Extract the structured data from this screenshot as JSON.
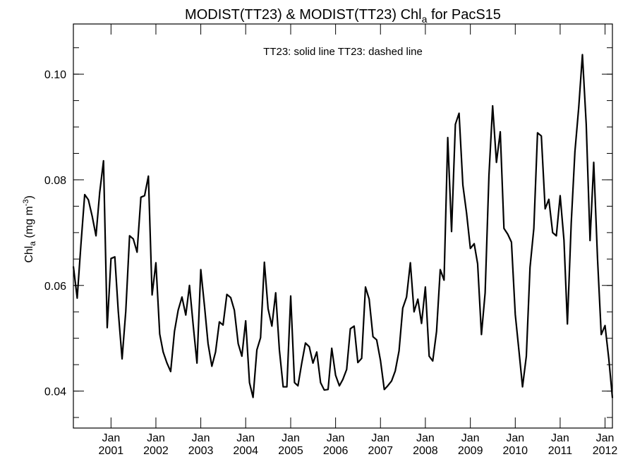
{
  "chart_data": {
    "type": "line",
    "title": {
      "prefix": "MODIST(TT23) & MODIST(TT23)  Chl",
      "subscript": "a",
      "suffix": " for PacS15"
    },
    "annotation": "TT23: solid line   TT23: dashed line",
    "ylabel": {
      "prefix": "Chl",
      "subscript": "a",
      "middle": " (mg m",
      "superscript": "-3",
      "suffix": ")"
    },
    "xlim": [
      "2000-03-01",
      "2012-03-01"
    ],
    "ylim": [
      0.033,
      0.1095
    ],
    "yticks": [
      {
        "value": 0.04,
        "label": "0.04"
      },
      {
        "value": 0.06,
        "label": "0.06"
      },
      {
        "value": 0.08,
        "label": "0.08"
      },
      {
        "value": 0.1,
        "label": "0.10"
      }
    ],
    "yminor_step": 0.005,
    "xticks": [
      {
        "date": "2001-01-01",
        "month": "Jan",
        "year": "2001"
      },
      {
        "date": "2002-01-01",
        "month": "Jan",
        "year": "2002"
      },
      {
        "date": "2003-01-01",
        "month": "Jan",
        "year": "2003"
      },
      {
        "date": "2004-01-01",
        "month": "Jan",
        "year": "2004"
      },
      {
        "date": "2005-01-01",
        "month": "Jan",
        "year": "2005"
      },
      {
        "date": "2006-01-01",
        "month": "Jan",
        "year": "2006"
      },
      {
        "date": "2007-01-01",
        "month": "Jan",
        "year": "2007"
      },
      {
        "date": "2008-01-01",
        "month": "Jan",
        "year": "2008"
      },
      {
        "date": "2009-01-01",
        "month": "Jan",
        "year": "2009"
      },
      {
        "date": "2010-01-01",
        "month": "Jan",
        "year": "2010"
      },
      {
        "date": "2011-01-01",
        "month": "Jan",
        "year": "2011"
      },
      {
        "date": "2012-01-01",
        "month": "Jan",
        "year": "2012"
      }
    ],
    "grid": false,
    "series": [
      {
        "style": "solid",
        "color": "#000000",
        "points": [
          [
            "2000-03-01",
            0.0636
          ],
          [
            "2000-04-01",
            0.0576
          ],
          [
            "2000-05-01",
            0.0676
          ],
          [
            "2000-06-01",
            0.0772
          ],
          [
            "2000-07-01",
            0.0762
          ],
          [
            "2000-08-01",
            0.0731
          ],
          [
            "2000-09-01",
            0.0694
          ],
          [
            "2000-10-01",
            0.0776
          ],
          [
            "2000-11-01",
            0.0836
          ],
          [
            "2000-12-01",
            0.052
          ],
          [
            "2001-01-01",
            0.0651
          ],
          [
            "2001-02-01",
            0.0654
          ],
          [
            "2001-03-01",
            0.0551
          ],
          [
            "2001-04-01",
            0.0461
          ],
          [
            "2001-05-01",
            0.0551
          ],
          [
            "2001-06-01",
            0.0694
          ],
          [
            "2001-07-01",
            0.0688
          ],
          [
            "2001-08-01",
            0.0663
          ],
          [
            "2001-09-01",
            0.0767
          ],
          [
            "2001-10-01",
            0.077
          ],
          [
            "2001-11-01",
            0.0807
          ],
          [
            "2001-12-01",
            0.0582
          ],
          [
            "2002-01-01",
            0.0643
          ],
          [
            "2002-02-01",
            0.0508
          ],
          [
            "2002-03-01",
            0.0474
          ],
          [
            "2002-04-01",
            0.0453
          ],
          [
            "2002-05-01",
            0.0437
          ],
          [
            "2002-06-01",
            0.0513
          ],
          [
            "2002-07-01",
            0.0553
          ],
          [
            "2002-08-01",
            0.0578
          ],
          [
            "2002-09-01",
            0.0544
          ],
          [
            "2002-10-01",
            0.06
          ],
          [
            "2002-11-01",
            0.0523
          ],
          [
            "2002-12-01",
            0.0453
          ],
          [
            "2003-01-01",
            0.063
          ],
          [
            "2003-02-01",
            0.0559
          ],
          [
            "2003-03-01",
            0.049
          ],
          [
            "2003-04-01",
            0.0447
          ],
          [
            "2003-05-01",
            0.0474
          ],
          [
            "2003-06-01",
            0.0531
          ],
          [
            "2003-07-01",
            0.0525
          ],
          [
            "2003-08-01",
            0.0583
          ],
          [
            "2003-09-01",
            0.0577
          ],
          [
            "2003-10-01",
            0.0553
          ],
          [
            "2003-11-01",
            0.049
          ],
          [
            "2003-12-01",
            0.0466
          ],
          [
            "2004-01-01",
            0.0533
          ],
          [
            "2004-02-01",
            0.0416
          ],
          [
            "2004-03-01",
            0.0388
          ],
          [
            "2004-04-01",
            0.0478
          ],
          [
            "2004-05-01",
            0.0501
          ],
          [
            "2004-06-01",
            0.0644
          ],
          [
            "2004-07-01",
            0.0556
          ],
          [
            "2004-08-01",
            0.0523
          ],
          [
            "2004-09-01",
            0.0586
          ],
          [
            "2004-10-01",
            0.0478
          ],
          [
            "2004-11-01",
            0.0408
          ],
          [
            "2004-12-01",
            0.0408
          ],
          [
            "2005-01-01",
            0.058
          ],
          [
            "2005-02-01",
            0.0416
          ],
          [
            "2005-03-01",
            0.041
          ],
          [
            "2005-04-01",
            0.0453
          ],
          [
            "2005-05-01",
            0.0491
          ],
          [
            "2005-06-01",
            0.0484
          ],
          [
            "2005-07-01",
            0.0453
          ],
          [
            "2005-08-01",
            0.0474
          ],
          [
            "2005-09-01",
            0.0416
          ],
          [
            "2005-10-01",
            0.0402
          ],
          [
            "2005-11-01",
            0.0403
          ],
          [
            "2005-12-01",
            0.0481
          ],
          [
            "2006-01-01",
            0.043
          ],
          [
            "2006-02-01",
            0.041
          ],
          [
            "2006-03-01",
            0.0422
          ],
          [
            "2006-04-01",
            0.0441
          ],
          [
            "2006-05-01",
            0.0518
          ],
          [
            "2006-06-01",
            0.0523
          ],
          [
            "2006-07-01",
            0.0454
          ],
          [
            "2006-08-01",
            0.0462
          ],
          [
            "2006-09-01",
            0.0597
          ],
          [
            "2006-10-01",
            0.0574
          ],
          [
            "2006-11-01",
            0.0503
          ],
          [
            "2006-12-01",
            0.0497
          ],
          [
            "2007-01-01",
            0.0458
          ],
          [
            "2007-02-01",
            0.0403
          ],
          [
            "2007-03-01",
            0.041
          ],
          [
            "2007-04-01",
            0.0419
          ],
          [
            "2007-05-01",
            0.0438
          ],
          [
            "2007-06-01",
            0.0476
          ],
          [
            "2007-07-01",
            0.0557
          ],
          [
            "2007-08-01",
            0.0578
          ],
          [
            "2007-09-01",
            0.0643
          ],
          [
            "2007-10-01",
            0.055
          ],
          [
            "2007-11-01",
            0.0574
          ],
          [
            "2007-12-01",
            0.0528
          ],
          [
            "2008-01-01",
            0.0597
          ],
          [
            "2008-02-01",
            0.0466
          ],
          [
            "2008-03-01",
            0.0457
          ],
          [
            "2008-04-01",
            0.0513
          ],
          [
            "2008-05-01",
            0.063
          ],
          [
            "2008-06-01",
            0.061
          ],
          [
            "2008-07-01",
            0.088
          ],
          [
            "2008-08-01",
            0.0702
          ],
          [
            "2008-09-01",
            0.0905
          ],
          [
            "2008-10-01",
            0.0926
          ],
          [
            "2008-11-01",
            0.079
          ],
          [
            "2008-12-01",
            0.0737
          ],
          [
            "2009-01-01",
            0.067
          ],
          [
            "2009-02-01",
            0.0679
          ],
          [
            "2009-03-01",
            0.0641
          ],
          [
            "2009-04-01",
            0.0507
          ],
          [
            "2009-05-01",
            0.0586
          ],
          [
            "2009-06-01",
            0.0808
          ],
          [
            "2009-07-01",
            0.094
          ],
          [
            "2009-08-01",
            0.0833
          ],
          [
            "2009-09-01",
            0.0891
          ],
          [
            "2009-10-01",
            0.0708
          ],
          [
            "2009-11-01",
            0.0697
          ],
          [
            "2009-12-01",
            0.0682
          ],
          [
            "2010-01-01",
            0.0545
          ],
          [
            "2010-02-01",
            0.0474
          ],
          [
            "2010-03-01",
            0.0408
          ],
          [
            "2010-04-01",
            0.0466
          ],
          [
            "2010-05-01",
            0.0634
          ],
          [
            "2010-06-01",
            0.0708
          ],
          [
            "2010-07-01",
            0.0889
          ],
          [
            "2010-08-01",
            0.0883
          ],
          [
            "2010-09-01",
            0.0745
          ],
          [
            "2010-10-01",
            0.0763
          ],
          [
            "2010-11-01",
            0.07
          ],
          [
            "2010-12-01",
            0.0694
          ],
          [
            "2011-01-01",
            0.077
          ],
          [
            "2011-02-01",
            0.0686
          ],
          [
            "2011-03-01",
            0.0527
          ],
          [
            "2011-04-01",
            0.0718
          ],
          [
            "2011-05-01",
            0.0853
          ],
          [
            "2011-06-01",
            0.0937
          ],
          [
            "2011-07-01",
            0.1037
          ],
          [
            "2011-08-01",
            0.0905
          ],
          [
            "2011-09-01",
            0.0685
          ],
          [
            "2011-10-01",
            0.0833
          ],
          [
            "2011-11-01",
            0.065
          ],
          [
            "2011-12-01",
            0.0507
          ],
          [
            "2012-01-01",
            0.0524
          ],
          [
            "2012-02-01",
            0.046
          ],
          [
            "2012-03-01",
            0.0387
          ]
        ]
      }
    ]
  }
}
